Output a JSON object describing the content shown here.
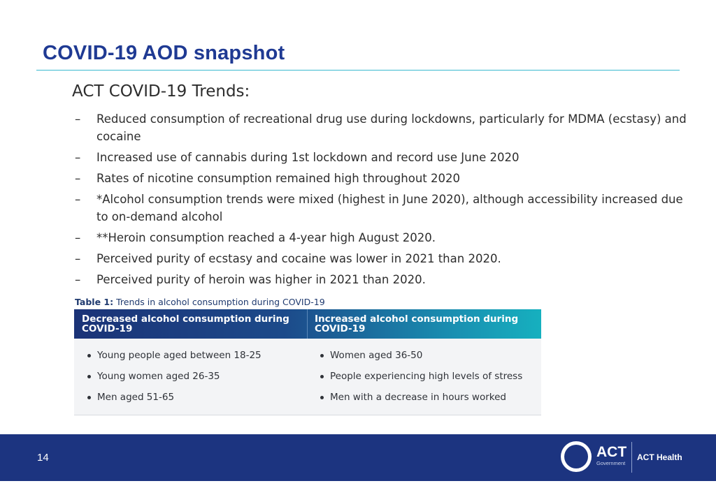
{
  "slide": {
    "title": "COVID-19 AOD snapshot",
    "subtitle": "ACT COVID-19 Trends:",
    "bullet_marker": "–",
    "bullets": [
      "Reduced consumption of recreational drug use during lockdowns, particularly for MDMA (ecstasy) and cocaine",
      "Increased use of cannabis during 1st lockdown and record use June 2020",
      "Rates of nicotine consumption remained high throughout 2020",
      "*Alcohol consumption trends were mixed (highest in June 2020), although accessibility increased due to on-demand alcohol",
      "**Heroin consumption reached a 4-year high August 2020.",
      "Perceived purity of ecstasy and cocaine was lower in 2021 than 2020.",
      "Perceived purity of heroin was higher in 2021 than 2020."
    ]
  },
  "table": {
    "caption_label": "Table 1:",
    "caption_text": "Trends in alcohol consumption during COVID-19",
    "columns": [
      {
        "header": "Decreased alcohol consumption during COVID-19",
        "items": [
          "Young people aged between 18-25",
          "Young women aged 26-35",
          "Men aged 51-65"
        ]
      },
      {
        "header": "Increased alcohol consumption during COVID-19",
        "items": [
          "Women aged 36-50",
          "People experiencing high levels of stress",
          "Men with a decrease in hours worked"
        ]
      }
    ]
  },
  "footer": {
    "page_number": "14",
    "logo_word": "ACT",
    "logo_sub": "Government",
    "brand": "ACT Health"
  },
  "colors": {
    "title": "#1f3a93",
    "rule": "#3bbad0",
    "footer_bg": "#1c3480",
    "table_header_start": "#1b3377",
    "table_header_end": "#16b0bf"
  }
}
